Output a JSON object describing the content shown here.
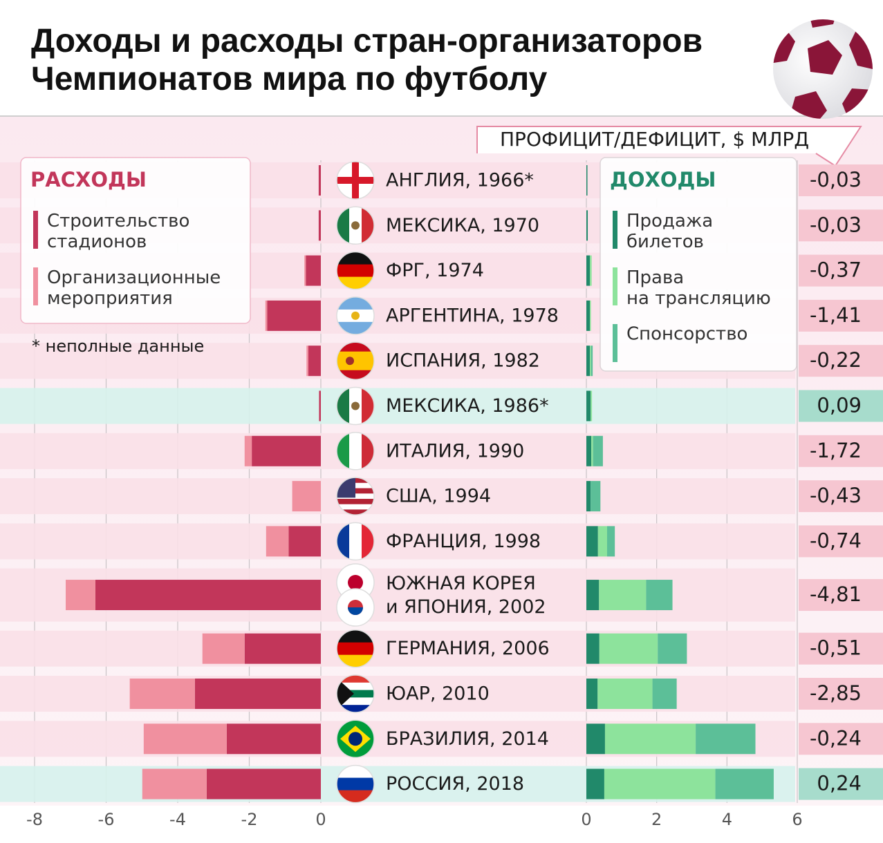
{
  "chart_data": [
    {
      "type": "bar",
      "title": "Доходы и расходы стран-организаторов\nЧемпионатов мира по футболу",
      "legend_title": "РАСХОДЫ",
      "note": "* неполные данные",
      "categories": [
        "АНГЛИЯ, 1966*",
        "МЕКСИКА, 1970",
        "ФРГ, 1974",
        "АРГЕНТИНА, 1978",
        "ИСПАНИЯ, 1982",
        "МЕКСИКА, 1986*",
        "ИТАЛИЯ, 1990",
        "США, 1994",
        "ФРАНЦИЯ, 1998",
        "ЮЖНАЯ КОРЕЯ\nи ЯПОНИЯ, 2002",
        "ГЕРМАНИЯ, 2006",
        "ЮАР, 2010",
        "БРАЗИЛИЯ, 2014",
        "РОССИЯ, 2018"
      ],
      "series": [
        {
          "name": "Строительство\nстадионов",
          "color": "#c2365a",
          "values": [
            -0.06,
            -0.06,
            -0.42,
            -1.5,
            -0.35,
            -0.05,
            -1.93,
            0,
            -0.9,
            -6.3,
            -2.13,
            -3.52,
            -2.63,
            -3.19
          ]
        },
        {
          "name": "Организационные\nмероприятия",
          "color": "#f0909f",
          "values": [
            0,
            0,
            -0.04,
            -0.05,
            -0.05,
            0,
            -0.2,
            -0.8,
            -0.63,
            -0.83,
            -1.18,
            -1.82,
            -2.32,
            -1.8
          ]
        }
      ],
      "xlim": [
        -8,
        0
      ],
      "xticks": [
        -8,
        -6,
        -4,
        -2,
        0
      ],
      "grid": true,
      "stacked": true
    },
    {
      "type": "bar",
      "legend_title": "ДОХОДЫ",
      "series": [
        {
          "name": "Продажа\nбилетов",
          "color": "#21896a",
          "values": [
            0.03,
            0.04,
            0.1,
            0.1,
            0.1,
            0.12,
            0.14,
            0.12,
            0.33,
            0.36,
            0.37,
            0.32,
            0.53,
            0.51
          ]
        },
        {
          "name": "Права\nна трансляцию",
          "color": "#8de39c",
          "values": [
            0,
            0,
            0.05,
            0.03,
            0.03,
            0.04,
            0.05,
            0,
            0.26,
            1.34,
            1.66,
            1.56,
            2.58,
            3.16
          ]
        },
        {
          "name": "Спонсорство",
          "color": "#5cbf98",
          "values": [
            0,
            0,
            0,
            0,
            0.05,
            0,
            0.28,
            0.28,
            0.22,
            0.75,
            0.83,
            0.69,
            1.7,
            1.66
          ]
        }
      ],
      "xlim": [
        0,
        6
      ],
      "xticks": [
        0,
        2,
        4,
        6
      ],
      "grid": true,
      "stacked": true
    },
    {
      "type": "table",
      "title": "ПРОФИЦИТ/ДЕФИЦИТ, $ МЛРД",
      "values": [
        -0.03,
        -0.03,
        -0.37,
        -1.41,
        -0.22,
        0.09,
        -1.72,
        -0.43,
        -0.74,
        -4.81,
        -0.51,
        -2.85,
        -0.24,
        0.24
      ],
      "value_labels": [
        "-0,03",
        "-0,03",
        "-0,37",
        "-1,41",
        "-0,22",
        "0,09",
        "-1,72",
        "-0,43",
        "-0,74",
        "-4,81",
        "-0,51",
        "-2,85",
        "-0,24",
        "0,24"
      ],
      "negative_color": "#f6c6d1",
      "positive_color": "#a7dccc"
    }
  ]
}
